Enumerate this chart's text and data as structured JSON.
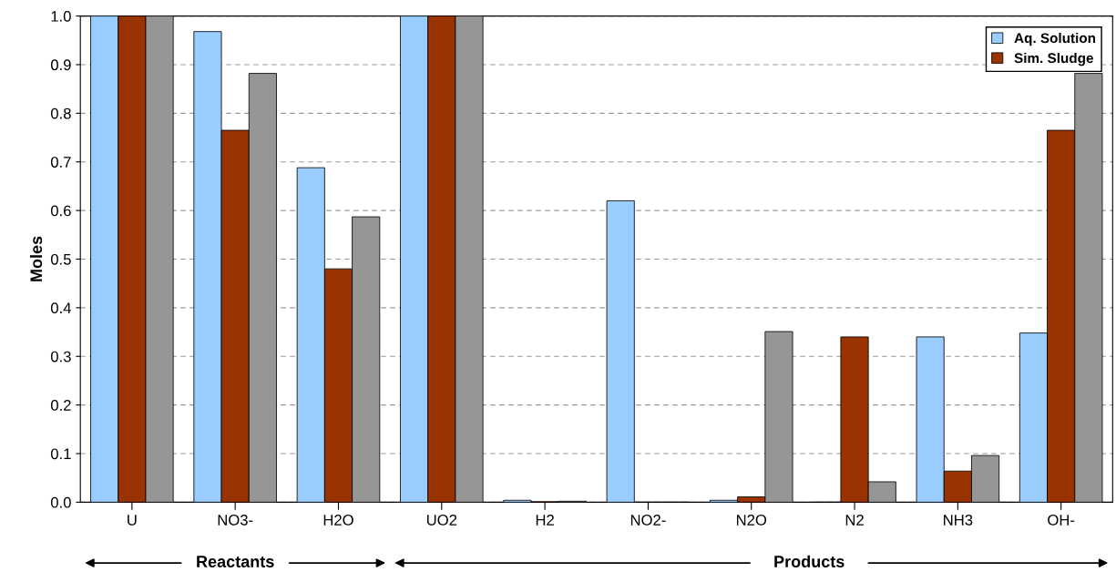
{
  "chart_data": {
    "type": "bar",
    "ylabel": "Moles",
    "categories": [
      "U",
      "NO3-",
      "H2O",
      "UO2",
      "H2",
      "NO2-",
      "N2O",
      "N2",
      "NH3",
      "OH-"
    ],
    "series": [
      {
        "name": "Aq. Solution",
        "color": "#99ccff",
        "values": [
          1.0,
          0.968,
          0.688,
          1.0,
          0.004,
          0.62,
          0.004,
          0.0,
          0.34,
          0.348
        ]
      },
      {
        "name": "Sim. Sludge",
        "color": "#993300",
        "values": [
          1.0,
          0.765,
          0.48,
          1.0,
          0.001,
          0.0,
          0.011,
          0.34,
          0.064,
          0.765
        ]
      },
      {
        "color": "#969696",
        "values": [
          1.0,
          0.882,
          0.587,
          1.0,
          0.002,
          0.0,
          0.351,
          0.042,
          0.096,
          0.882
        ]
      }
    ],
    "ylim": [
      0,
      1.0
    ],
    "yticks": [
      {
        "value": 0,
        "label": "0.0"
      },
      {
        "value": 0.1,
        "label": "0.1"
      },
      {
        "value": 0.2,
        "label": "0.2"
      },
      {
        "value": 0.3,
        "label": "0.3"
      },
      {
        "value": 0.4,
        "label": "0.4"
      },
      {
        "value": 0.5,
        "label": "0.5"
      },
      {
        "value": 0.6,
        "label": "0.6"
      },
      {
        "value": 0.7,
        "label": "0.7"
      },
      {
        "value": 0.8,
        "label": "0.8"
      },
      {
        "value": 0.9,
        "label": "0.9"
      },
      {
        "value": 1.0,
        "label": "1.0"
      }
    ],
    "grid": "y",
    "legend": "top right",
    "annotations": [
      "Reactants",
      "Products"
    ]
  }
}
